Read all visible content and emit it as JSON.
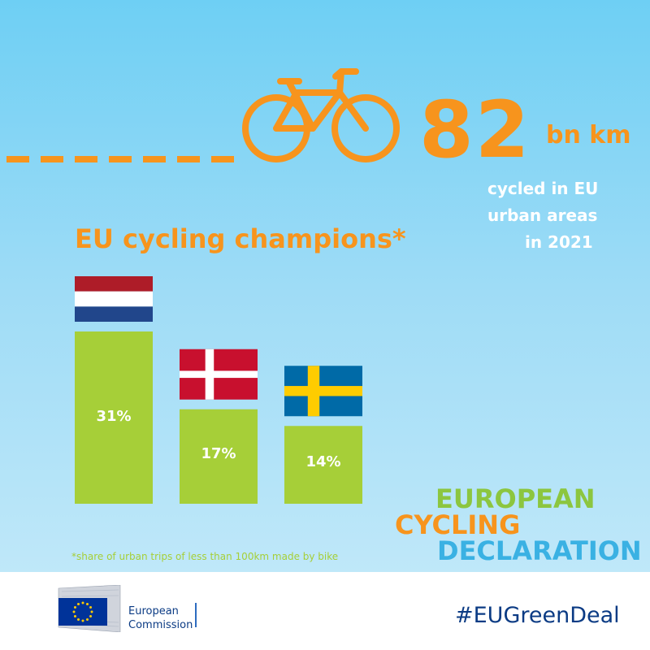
{
  "colors": {
    "accent": "#f7941d",
    "bar_green": "#a6cf38",
    "logo_green": "#8cc63f",
    "logo_blue": "#3ab1e3",
    "text_white": "#ffffff",
    "eu_blue": "#0b3b84"
  },
  "header": {
    "icon": "bicycle-icon",
    "stat_value": "82",
    "stat_unit": "bn km",
    "stat_caption": [
      "cycled in EU",
      "urban areas",
      "in 2021"
    ]
  },
  "chart_data": {
    "type": "bar",
    "title": "EU cycling champions*",
    "categories": [
      "Netherlands",
      "Denmark",
      "Sweden"
    ],
    "category_icons": [
      "netherlands-flag-icon",
      "denmark-flag-icon",
      "sweden-flag-icon"
    ],
    "values": [
      31,
      17,
      14
    ],
    "value_labels": [
      "31%",
      "17%",
      "14%"
    ],
    "unit": "%",
    "ylim": [
      0,
      31
    ],
    "grid": false,
    "xlabel": "",
    "ylabel": "",
    "footnote": "*share of urban trips of less than 100km made by bike"
  },
  "campaign_logo": {
    "lines": [
      "EUROPEAN",
      "CYCLING",
      "DECLARATION"
    ]
  },
  "footer": {
    "org_logo": "european-commission-logo",
    "org_name": [
      "European",
      "Commission"
    ],
    "hashtag": "#EUGreenDeal"
  }
}
